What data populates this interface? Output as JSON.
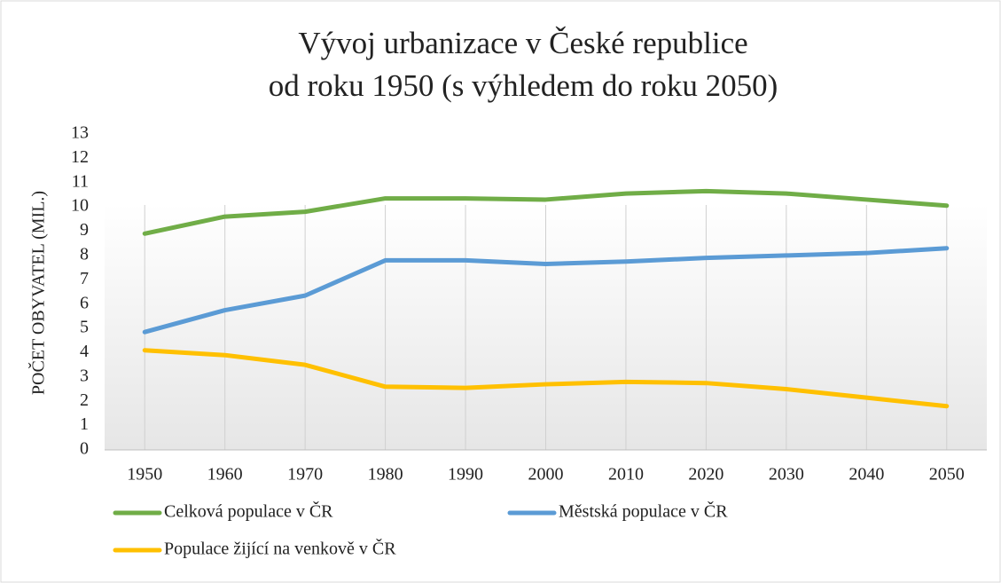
{
  "chart_data": {
    "type": "line",
    "title": [
      "Vývoj urbanizace v České republice",
      "od roku 1950 (s výhledem do roku 2050)"
    ],
    "y_label": "POČET OBYVATEL (MIL.)",
    "categories": [
      "1950",
      "1960",
      "1970",
      "1980",
      "1990",
      "2000",
      "2010",
      "2020",
      "2030",
      "2040",
      "2050"
    ],
    "series": [
      {
        "name": "Celková populace v ČR",
        "color": "#70ad47",
        "values": [
          8.9,
          9.6,
          9.8,
          10.35,
          10.35,
          10.3,
          10.55,
          10.65,
          10.55,
          10.3,
          10.05
        ]
      },
      {
        "name": "Městská populace v ČR",
        "color": "#5b9bd5",
        "values": [
          4.85,
          5.75,
          6.35,
          7.8,
          7.8,
          7.65,
          7.75,
          7.9,
          8.0,
          8.1,
          8.3
        ]
      },
      {
        "name": "Populace žijící na venkově v ČR",
        "color": "#ffc000",
        "values": [
          4.1,
          3.9,
          3.5,
          2.6,
          2.55,
          2.7,
          2.8,
          2.75,
          2.5,
          2.15,
          1.8
        ]
      }
    ],
    "ylim": [
      0,
      13
    ],
    "yticks": [
      0,
      1,
      2,
      3,
      4,
      5,
      6,
      7,
      8,
      9,
      10,
      11,
      12,
      13
    ],
    "grid": "x",
    "legend": "bottom"
  }
}
